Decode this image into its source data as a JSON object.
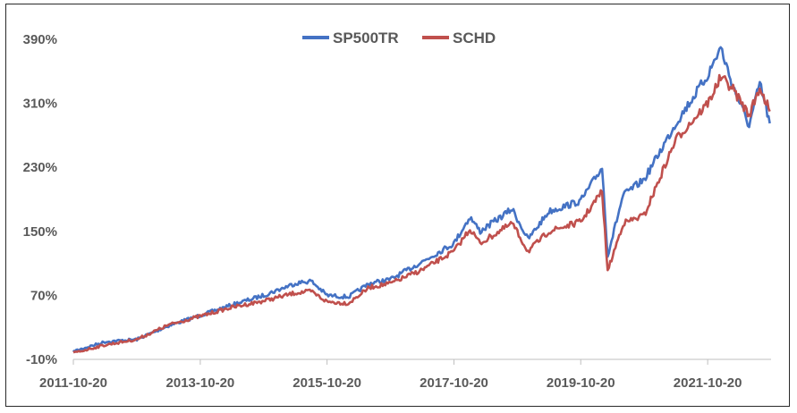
{
  "chart_data": {
    "type": "line",
    "title": "",
    "xlabel": "",
    "ylabel": "",
    "x_ticks": [
      "2011-10-20",
      "2013-10-20",
      "2015-10-20",
      "2017-10-20",
      "2019-10-20",
      "2021-10-20"
    ],
    "y_ticks": [
      "-10%",
      "70%",
      "150%",
      "230%",
      "310%",
      "390%"
    ],
    "y_tick_values": [
      -10,
      70,
      150,
      230,
      310,
      390
    ],
    "ylim": [
      -10,
      390
    ],
    "xlim": [
      "2011-10-20",
      "2022-10-20"
    ],
    "grid": false,
    "legend_position": "top-center",
    "series": [
      {
        "name": "SP500TR",
        "color": "#4472C4",
        "points": [
          [
            "2011-10-20",
            0
          ],
          [
            "2012-04-20",
            12
          ],
          [
            "2012-10-20",
            15
          ],
          [
            "2013-04-20",
            32
          ],
          [
            "2013-10-20",
            45
          ],
          [
            "2014-04-20",
            58
          ],
          [
            "2014-10-20",
            70
          ],
          [
            "2015-04-20",
            85
          ],
          [
            "2015-07-20",
            88
          ],
          [
            "2015-10-20",
            70
          ],
          [
            "2016-02-20",
            68
          ],
          [
            "2016-06-20",
            85
          ],
          [
            "2016-10-20",
            90
          ],
          [
            "2017-04-20",
            112
          ],
          [
            "2017-10-20",
            135
          ],
          [
            "2018-01-20",
            168
          ],
          [
            "2018-03-20",
            150
          ],
          [
            "2018-09-20",
            178
          ],
          [
            "2018-12-20",
            140
          ],
          [
            "2019-04-20",
            175
          ],
          [
            "2019-10-20",
            188
          ],
          [
            "2020-02-20",
            230
          ],
          [
            "2020-03-23",
            120
          ],
          [
            "2020-06-20",
            195
          ],
          [
            "2020-10-20",
            215
          ],
          [
            "2021-04-20",
            285
          ],
          [
            "2021-10-20",
            345
          ],
          [
            "2022-01-03",
            380
          ],
          [
            "2022-03-08",
            335
          ],
          [
            "2022-06-16",
            282
          ],
          [
            "2022-08-16",
            335
          ],
          [
            "2022-10-13",
            285
          ]
        ]
      },
      {
        "name": "SCHD",
        "color": "#C0504D",
        "points": [
          [
            "2011-10-20",
            -2
          ],
          [
            "2012-04-20",
            8
          ],
          [
            "2012-10-20",
            15
          ],
          [
            "2013-04-20",
            33
          ],
          [
            "2013-10-20",
            44
          ],
          [
            "2014-04-20",
            55
          ],
          [
            "2014-10-20",
            63
          ],
          [
            "2015-04-20",
            73
          ],
          [
            "2015-07-20",
            75
          ],
          [
            "2015-10-20",
            62
          ],
          [
            "2016-02-20",
            60
          ],
          [
            "2016-06-20",
            80
          ],
          [
            "2016-10-20",
            85
          ],
          [
            "2017-04-20",
            102
          ],
          [
            "2017-10-20",
            125
          ],
          [
            "2018-01-20",
            153
          ],
          [
            "2018-03-20",
            135
          ],
          [
            "2018-09-20",
            160
          ],
          [
            "2018-12-20",
            125
          ],
          [
            "2019-04-20",
            150
          ],
          [
            "2019-10-20",
            162
          ],
          [
            "2020-02-20",
            200
          ],
          [
            "2020-03-23",
            100
          ],
          [
            "2020-06-20",
            160
          ],
          [
            "2020-10-20",
            170
          ],
          [
            "2021-04-20",
            265
          ],
          [
            "2021-10-20",
            310
          ],
          [
            "2022-01-03",
            342
          ],
          [
            "2022-03-08",
            330
          ],
          [
            "2022-06-16",
            295
          ],
          [
            "2022-08-16",
            330
          ],
          [
            "2022-10-13",
            300
          ]
        ]
      }
    ]
  }
}
